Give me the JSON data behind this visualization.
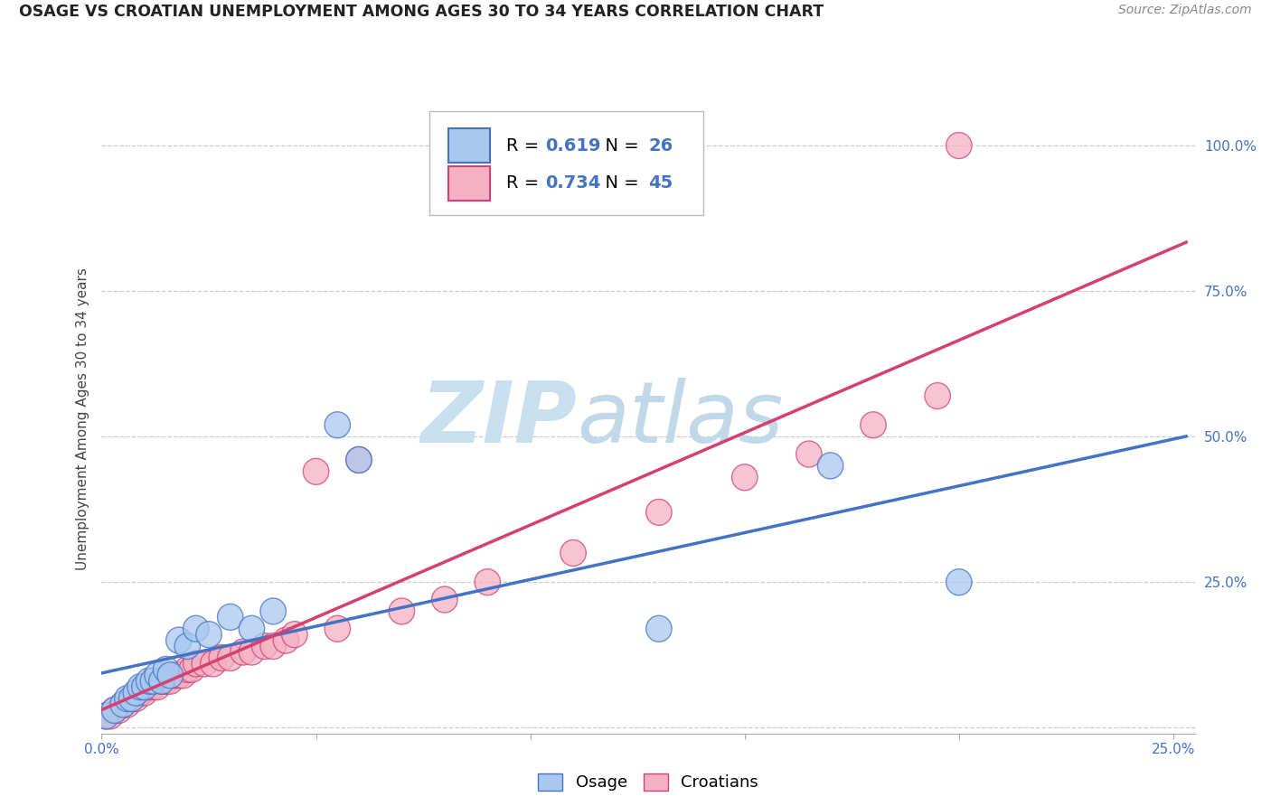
{
  "title": "OSAGE VS CROATIAN UNEMPLOYMENT AMONG AGES 30 TO 34 YEARS CORRELATION CHART",
  "source": "Source: ZipAtlas.com",
  "ylabel": "Unemployment Among Ages 30 to 34 years",
  "xlim": [
    0.0,
    0.255
  ],
  "ylim": [
    -0.01,
    1.07
  ],
  "x_ticks": [
    0.0,
    0.05,
    0.1,
    0.15,
    0.2,
    0.25
  ],
  "x_tick_labels": [
    "0.0%",
    "",
    "",
    "",
    "",
    "25.0%"
  ],
  "y_ticks": [
    0.0,
    0.25,
    0.5,
    0.75,
    1.0
  ],
  "y_tick_labels": [
    "",
    "25.0%",
    "50.0%",
    "75.0%",
    "100.0%"
  ],
  "osage_R": "0.619",
  "osage_N": "26",
  "croatian_R": "0.734",
  "croatian_N": "45",
  "osage_color": "#a8c8f0",
  "osage_edge_color": "#4472c4",
  "osage_line_color": "#4472c4",
  "croatian_color": "#f4b0c4",
  "croatian_edge_color": "#d44070",
  "croatian_line_color": "#d44070",
  "watermark_zip_color": "#c8dff0",
  "watermark_atlas_color": "#c0d8e8",
  "osage_x": [
    0.001,
    0.003,
    0.005,
    0.006,
    0.007,
    0.008,
    0.009,
    0.01,
    0.011,
    0.012,
    0.013,
    0.014,
    0.015,
    0.016,
    0.018,
    0.02,
    0.022,
    0.025,
    0.03,
    0.035,
    0.04,
    0.055,
    0.06,
    0.13,
    0.17,
    0.2
  ],
  "osage_y": [
    0.02,
    0.03,
    0.04,
    0.05,
    0.05,
    0.06,
    0.07,
    0.07,
    0.08,
    0.08,
    0.09,
    0.08,
    0.1,
    0.09,
    0.15,
    0.14,
    0.17,
    0.16,
    0.19,
    0.17,
    0.2,
    0.52,
    0.46,
    0.17,
    0.45,
    0.25
  ],
  "croatian_x": [
    0.001,
    0.002,
    0.003,
    0.004,
    0.005,
    0.006,
    0.007,
    0.008,
    0.009,
    0.01,
    0.011,
    0.012,
    0.013,
    0.014,
    0.015,
    0.016,
    0.017,
    0.018,
    0.019,
    0.02,
    0.021,
    0.022,
    0.024,
    0.026,
    0.028,
    0.03,
    0.033,
    0.035,
    0.038,
    0.04,
    0.043,
    0.045,
    0.05,
    0.055,
    0.06,
    0.07,
    0.08,
    0.09,
    0.11,
    0.13,
    0.15,
    0.165,
    0.18,
    0.195,
    0.2
  ],
  "croatian_y": [
    0.02,
    0.02,
    0.03,
    0.03,
    0.04,
    0.04,
    0.05,
    0.05,
    0.06,
    0.06,
    0.07,
    0.07,
    0.07,
    0.08,
    0.08,
    0.08,
    0.09,
    0.09,
    0.09,
    0.1,
    0.1,
    0.11,
    0.11,
    0.11,
    0.12,
    0.12,
    0.13,
    0.13,
    0.14,
    0.14,
    0.15,
    0.16,
    0.44,
    0.17,
    0.46,
    0.2,
    0.22,
    0.25,
    0.3,
    0.37,
    0.43,
    0.47,
    0.52,
    0.57,
    1.0
  ]
}
